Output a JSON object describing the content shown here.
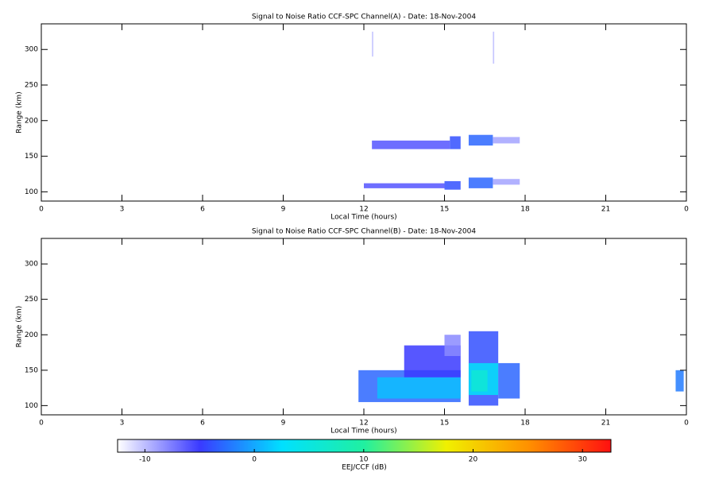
{
  "chart_data": [
    {
      "type": "rti",
      "title": "Signal to Noise Ratio CCF-SPC Channel(A) - Date: 18-Nov-2004",
      "x_label": "Local Time (hours)",
      "y_label": "Range (km)",
      "xlim": [
        0,
        24
      ],
      "xticks": [
        0,
        3,
        6,
        9,
        12,
        15,
        18,
        21,
        {
          "value": 24,
          "label": "0"
        }
      ],
      "ylim": [
        87,
        336
      ],
      "yticks": [
        100,
        150,
        200,
        250,
        300
      ],
      "echoes": [
        {
          "x": [
            12.3,
            15.2
          ],
          "y": [
            160,
            172
          ],
          "value": -6
        },
        {
          "x": [
            15.2,
            15.6
          ],
          "y": [
            160,
            178
          ],
          "value": -4
        },
        {
          "x": [
            15.9,
            16.8
          ],
          "y": [
            165,
            180
          ],
          "value": -3
        },
        {
          "x": [
            16.8,
            17.8
          ],
          "y": [
            168,
            177
          ],
          "value": -9
        },
        {
          "x": [
            12.0,
            15.0
          ],
          "y": [
            105,
            112
          ],
          "value": -6
        },
        {
          "x": [
            15.0,
            15.6
          ],
          "y": [
            103,
            115
          ],
          "value": -4
        },
        {
          "x": [
            15.9,
            16.8
          ],
          "y": [
            105,
            120
          ],
          "value": -3
        },
        {
          "x": [
            16.8,
            17.8
          ],
          "y": [
            110,
            118
          ],
          "value": -9
        },
        {
          "x": [
            12.3,
            12.35
          ],
          "y": [
            290,
            325
          ],
          "value": -10
        },
        {
          "x": [
            16.8,
            16.85
          ],
          "y": [
            280,
            325
          ],
          "value": -10
        }
      ]
    },
    {
      "type": "rti",
      "title": "Signal to Noise Ratio CCF-SPC Channel(B) - Date: 18-Nov-2004",
      "x_label": "Local Time (hours)",
      "y_label": "Range (km)",
      "xlim": [
        0,
        24
      ],
      "xticks": [
        0,
        3,
        6,
        9,
        12,
        15,
        18,
        21,
        {
          "value": 24,
          "label": "0"
        }
      ],
      "ylim": [
        87,
        336
      ],
      "yticks": [
        100,
        150,
        200,
        250,
        300
      ],
      "echoes": [
        {
          "x": [
            11.8,
            15.6
          ],
          "y": [
            105,
            150
          ],
          "value": -3
        },
        {
          "x": [
            12.5,
            15.6
          ],
          "y": [
            110,
            140
          ],
          "value": 1
        },
        {
          "x": [
            13.5,
            15.6
          ],
          "y": [
            140,
            185
          ],
          "value": -5
        },
        {
          "x": [
            15.0,
            15.6
          ],
          "y": [
            170,
            200
          ],
          "value": -8
        },
        {
          "x": [
            15.9,
            17.0
          ],
          "y": [
            100,
            205
          ],
          "value": -4
        },
        {
          "x": [
            15.9,
            17.0
          ],
          "y": [
            115,
            160
          ],
          "value": 3
        },
        {
          "x": [
            17.0,
            17.8
          ],
          "y": [
            110,
            160
          ],
          "value": -3
        },
        {
          "x": [
            16.0,
            16.6
          ],
          "y": [
            120,
            150
          ],
          "value": 6
        },
        {
          "x": [
            23.6,
            23.9
          ],
          "y": [
            120,
            150
          ],
          "value": -2
        }
      ]
    }
  ],
  "colorbar": {
    "label": "EEJ/CCF (dB)",
    "clim": [
      -12.5,
      32.6
    ],
    "cticks": [
      -10,
      0,
      10,
      20,
      30
    ],
    "colormap": [
      "#ffffff",
      "#3a3aff",
      "#00e0ff",
      "#20f0a0",
      "#f0f000",
      "#ff9000",
      "#ff1010"
    ]
  }
}
